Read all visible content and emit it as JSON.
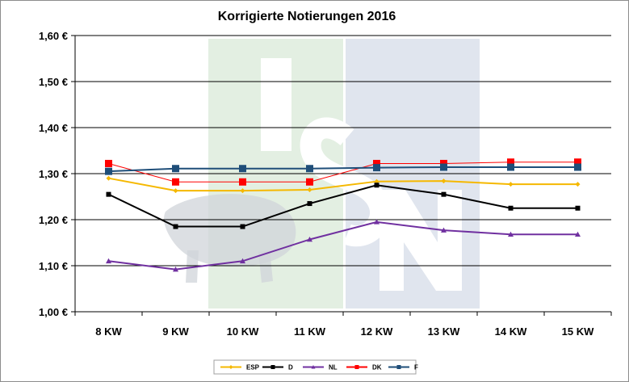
{
  "chart_data": {
    "type": "line",
    "title": "Korrigierte Notierungen 2016",
    "xlabel": "",
    "ylabel": "",
    "categories": [
      "8 KW",
      "9 KW",
      "10 KW",
      "11 KW",
      "12 KW",
      "13 KW",
      "14 KW",
      "15 KW"
    ],
    "ylim": [
      1.0,
      1.6
    ],
    "yticks": [
      1.0,
      1.1,
      1.2,
      1.3,
      1.4,
      1.5,
      1.6
    ],
    "ytick_labels": [
      "1,00 €",
      "1,10 €",
      "1,20 €",
      "1,30 €",
      "1,40 €",
      "1,50 €",
      "1,60 €"
    ],
    "grid": true,
    "legend_position": "bottom",
    "watermark_text": "ISN",
    "series": [
      {
        "name": "ESP",
        "color": "#F5B800",
        "marker": "diamond",
        "values": [
          1.29,
          1.263,
          1.263,
          1.265,
          1.283,
          1.284,
          1.277,
          1.277
        ]
      },
      {
        "name": "D",
        "color": "#000000",
        "marker": "square",
        "values": [
          1.255,
          1.185,
          1.185,
          1.235,
          1.275,
          1.255,
          1.225,
          1.225
        ]
      },
      {
        "name": "NL",
        "color": "#7030A0",
        "marker": "triangle",
        "values": [
          1.11,
          1.092,
          1.11,
          1.157,
          1.195,
          1.177,
          1.168,
          1.168
        ]
      },
      {
        "name": "DK",
        "color": "#FF0000",
        "marker": "square",
        "values": [
          1.322,
          1.282,
          1.282,
          1.282,
          1.322,
          1.322,
          1.325,
          1.325
        ]
      },
      {
        "name": "F",
        "color": "#1F4E79",
        "marker": "square",
        "values": [
          1.305,
          1.311,
          1.311,
          1.311,
          1.313,
          1.314,
          1.314,
          1.314
        ]
      }
    ]
  }
}
